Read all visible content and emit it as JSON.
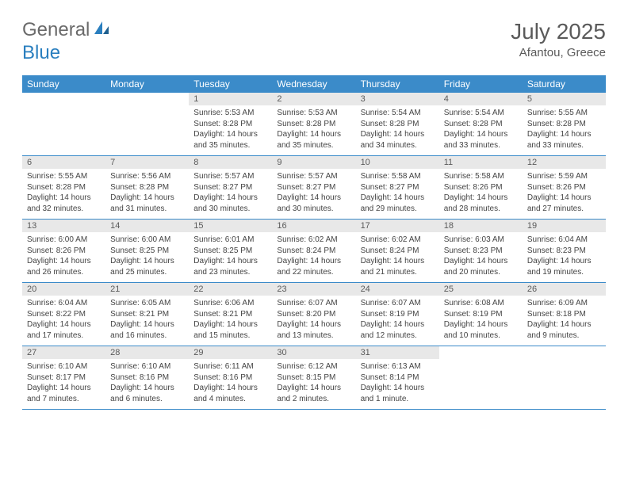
{
  "logo": {
    "text1": "General",
    "text2": "Blue"
  },
  "title": "July 2025",
  "location": "Afantou, Greece",
  "colors": {
    "header_bg": "#3b8bc9",
    "header_text": "#ffffff",
    "daynum_bg": "#e8e8e8",
    "border": "#3b8bc9",
    "text": "#444444",
    "logo_gray": "#6a6a6a",
    "logo_blue": "#2a7fbf"
  },
  "day_names": [
    "Sunday",
    "Monday",
    "Tuesday",
    "Wednesday",
    "Thursday",
    "Friday",
    "Saturday"
  ],
  "weeks": [
    [
      {
        "n": "",
        "lines": []
      },
      {
        "n": "",
        "lines": []
      },
      {
        "n": "1",
        "lines": [
          "Sunrise: 5:53 AM",
          "Sunset: 8:28 PM",
          "Daylight: 14 hours and 35 minutes."
        ]
      },
      {
        "n": "2",
        "lines": [
          "Sunrise: 5:53 AM",
          "Sunset: 8:28 PM",
          "Daylight: 14 hours and 35 minutes."
        ]
      },
      {
        "n": "3",
        "lines": [
          "Sunrise: 5:54 AM",
          "Sunset: 8:28 PM",
          "Daylight: 14 hours and 34 minutes."
        ]
      },
      {
        "n": "4",
        "lines": [
          "Sunrise: 5:54 AM",
          "Sunset: 8:28 PM",
          "Daylight: 14 hours and 33 minutes."
        ]
      },
      {
        "n": "5",
        "lines": [
          "Sunrise: 5:55 AM",
          "Sunset: 8:28 PM",
          "Daylight: 14 hours and 33 minutes."
        ]
      }
    ],
    [
      {
        "n": "6",
        "lines": [
          "Sunrise: 5:55 AM",
          "Sunset: 8:28 PM",
          "Daylight: 14 hours and 32 minutes."
        ]
      },
      {
        "n": "7",
        "lines": [
          "Sunrise: 5:56 AM",
          "Sunset: 8:28 PM",
          "Daylight: 14 hours and 31 minutes."
        ]
      },
      {
        "n": "8",
        "lines": [
          "Sunrise: 5:57 AM",
          "Sunset: 8:27 PM",
          "Daylight: 14 hours and 30 minutes."
        ]
      },
      {
        "n": "9",
        "lines": [
          "Sunrise: 5:57 AM",
          "Sunset: 8:27 PM",
          "Daylight: 14 hours and 30 minutes."
        ]
      },
      {
        "n": "10",
        "lines": [
          "Sunrise: 5:58 AM",
          "Sunset: 8:27 PM",
          "Daylight: 14 hours and 29 minutes."
        ]
      },
      {
        "n": "11",
        "lines": [
          "Sunrise: 5:58 AM",
          "Sunset: 8:26 PM",
          "Daylight: 14 hours and 28 minutes."
        ]
      },
      {
        "n": "12",
        "lines": [
          "Sunrise: 5:59 AM",
          "Sunset: 8:26 PM",
          "Daylight: 14 hours and 27 minutes."
        ]
      }
    ],
    [
      {
        "n": "13",
        "lines": [
          "Sunrise: 6:00 AM",
          "Sunset: 8:26 PM",
          "Daylight: 14 hours and 26 minutes."
        ]
      },
      {
        "n": "14",
        "lines": [
          "Sunrise: 6:00 AM",
          "Sunset: 8:25 PM",
          "Daylight: 14 hours and 25 minutes."
        ]
      },
      {
        "n": "15",
        "lines": [
          "Sunrise: 6:01 AM",
          "Sunset: 8:25 PM",
          "Daylight: 14 hours and 23 minutes."
        ]
      },
      {
        "n": "16",
        "lines": [
          "Sunrise: 6:02 AM",
          "Sunset: 8:24 PM",
          "Daylight: 14 hours and 22 minutes."
        ]
      },
      {
        "n": "17",
        "lines": [
          "Sunrise: 6:02 AM",
          "Sunset: 8:24 PM",
          "Daylight: 14 hours and 21 minutes."
        ]
      },
      {
        "n": "18",
        "lines": [
          "Sunrise: 6:03 AM",
          "Sunset: 8:23 PM",
          "Daylight: 14 hours and 20 minutes."
        ]
      },
      {
        "n": "19",
        "lines": [
          "Sunrise: 6:04 AM",
          "Sunset: 8:23 PM",
          "Daylight: 14 hours and 19 minutes."
        ]
      }
    ],
    [
      {
        "n": "20",
        "lines": [
          "Sunrise: 6:04 AM",
          "Sunset: 8:22 PM",
          "Daylight: 14 hours and 17 minutes."
        ]
      },
      {
        "n": "21",
        "lines": [
          "Sunrise: 6:05 AM",
          "Sunset: 8:21 PM",
          "Daylight: 14 hours and 16 minutes."
        ]
      },
      {
        "n": "22",
        "lines": [
          "Sunrise: 6:06 AM",
          "Sunset: 8:21 PM",
          "Daylight: 14 hours and 15 minutes."
        ]
      },
      {
        "n": "23",
        "lines": [
          "Sunrise: 6:07 AM",
          "Sunset: 8:20 PM",
          "Daylight: 14 hours and 13 minutes."
        ]
      },
      {
        "n": "24",
        "lines": [
          "Sunrise: 6:07 AM",
          "Sunset: 8:19 PM",
          "Daylight: 14 hours and 12 minutes."
        ]
      },
      {
        "n": "25",
        "lines": [
          "Sunrise: 6:08 AM",
          "Sunset: 8:19 PM",
          "Daylight: 14 hours and 10 minutes."
        ]
      },
      {
        "n": "26",
        "lines": [
          "Sunrise: 6:09 AM",
          "Sunset: 8:18 PM",
          "Daylight: 14 hours and 9 minutes."
        ]
      }
    ],
    [
      {
        "n": "27",
        "lines": [
          "Sunrise: 6:10 AM",
          "Sunset: 8:17 PM",
          "Daylight: 14 hours and 7 minutes."
        ]
      },
      {
        "n": "28",
        "lines": [
          "Sunrise: 6:10 AM",
          "Sunset: 8:16 PM",
          "Daylight: 14 hours and 6 minutes."
        ]
      },
      {
        "n": "29",
        "lines": [
          "Sunrise: 6:11 AM",
          "Sunset: 8:16 PM",
          "Daylight: 14 hours and 4 minutes."
        ]
      },
      {
        "n": "30",
        "lines": [
          "Sunrise: 6:12 AM",
          "Sunset: 8:15 PM",
          "Daylight: 14 hours and 2 minutes."
        ]
      },
      {
        "n": "31",
        "lines": [
          "Sunrise: 6:13 AM",
          "Sunset: 8:14 PM",
          "Daylight: 14 hours and 1 minute."
        ]
      },
      {
        "n": "",
        "lines": []
      },
      {
        "n": "",
        "lines": []
      }
    ]
  ]
}
